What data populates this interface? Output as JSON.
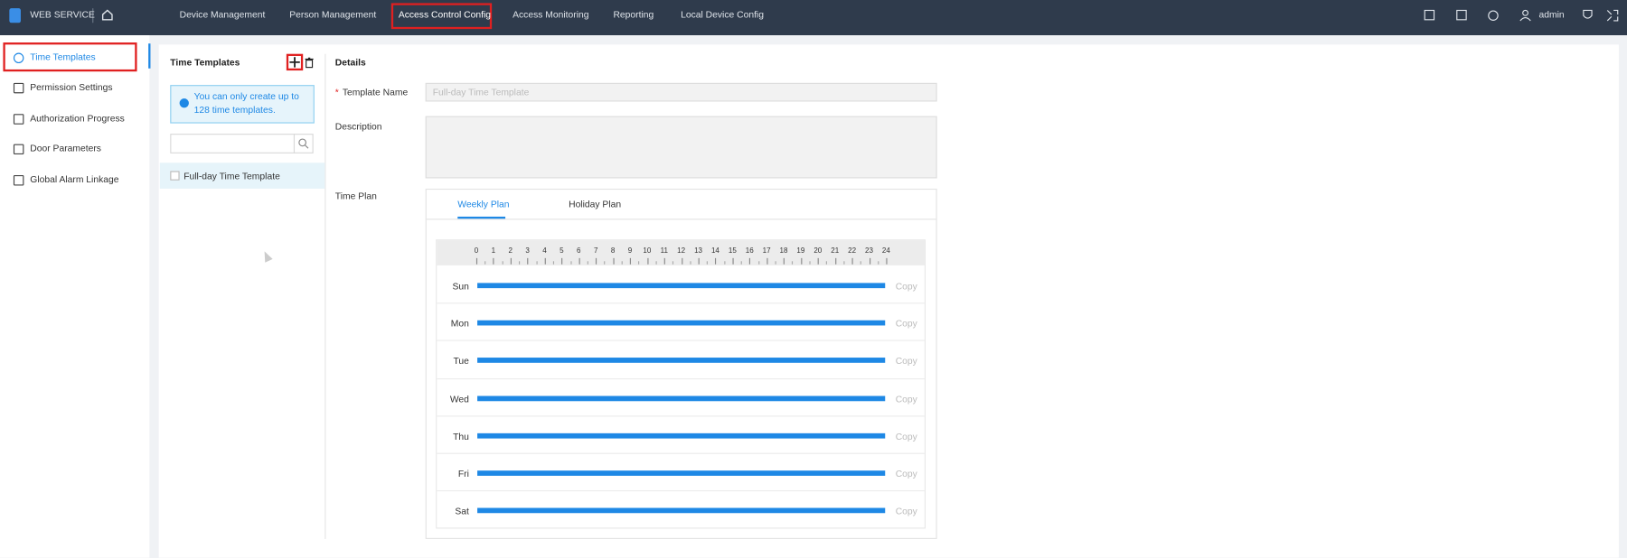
{
  "header": {
    "brand": "WEB SERVICE",
    "nav": [
      "Device Management",
      "Person Management",
      "Access Control Config",
      "Access Monitoring",
      "Reporting",
      "Local Device Config"
    ],
    "user": "admin"
  },
  "sidebar": {
    "items": [
      "Time Templates",
      "Permission Settings",
      "Authorization Progress",
      "Door Parameters",
      "Global Alarm Linkage"
    ]
  },
  "templates": {
    "title": "Time Templates",
    "notice": "You can only create up to 128 time templates.",
    "items": [
      "Full-day Time Template"
    ]
  },
  "details": {
    "title": "Details",
    "required_mark": "*",
    "fields": {
      "template_name": {
        "label": "Template Name",
        "placeholder": "Full-day Time Template"
      },
      "description": {
        "label": "Description"
      },
      "time_plan": {
        "label": "Time Plan"
      }
    },
    "tabs": [
      "Weekly Plan",
      "Holiday Plan"
    ],
    "hours": [
      0,
      1,
      2,
      3,
      4,
      5,
      6,
      7,
      8,
      9,
      10,
      11,
      12,
      13,
      14,
      15,
      16,
      17,
      18,
      19,
      20,
      21,
      22,
      23,
      24
    ],
    "days": [
      "Sun",
      "Mon",
      "Tue",
      "Wed",
      "Thu",
      "Fri",
      "Sat"
    ],
    "copy": "Copy"
  }
}
